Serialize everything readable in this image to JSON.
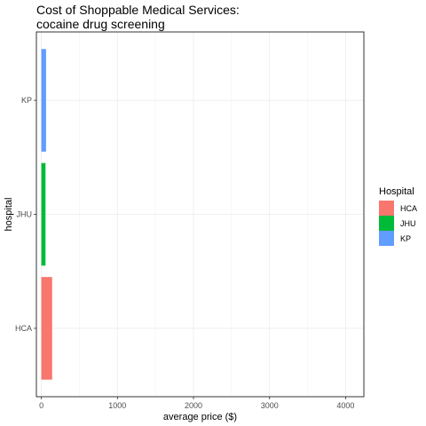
{
  "chart_data": {
    "type": "bar",
    "orientation": "horizontal",
    "title_line1": "Cost of Shoppable Medical Services:",
    "title_line2": "cocaine drug screening",
    "xlabel": "average price ($)",
    "ylabel": "hospital",
    "categories": [
      "HCA",
      "JHU",
      "KP"
    ],
    "values": [
      142,
      55,
      62
    ],
    "colors": [
      "#F8766D",
      "#00BA38",
      "#619CFF"
    ],
    "xlim": [
      -65,
      4240
    ],
    "x_ticks": [
      0,
      1000,
      2000,
      3000,
      4000
    ],
    "x_tick_labels": [
      "0",
      "1000",
      "2000",
      "3000",
      "4000"
    ],
    "grid": true,
    "legend": {
      "title": "Hospital",
      "position": "right",
      "entries": [
        "HCA",
        "JHU",
        "KP"
      ]
    }
  }
}
